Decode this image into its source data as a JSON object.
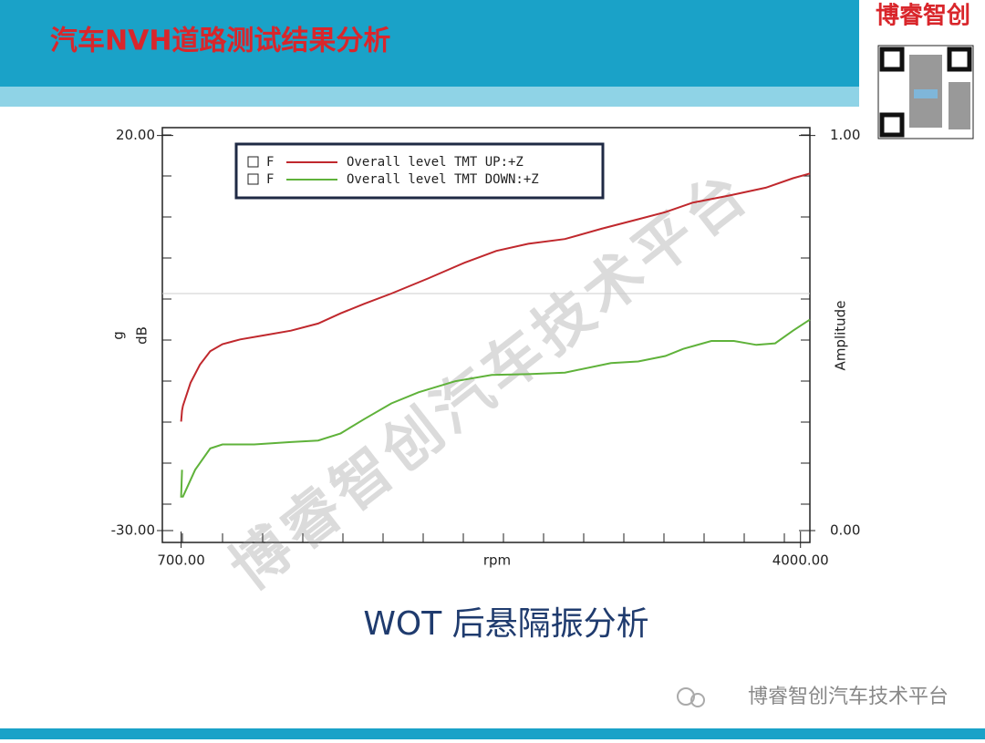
{
  "header": {
    "title": "汽车NVH道路测试结果分析"
  },
  "logo": {
    "text": "博睿智创"
  },
  "chart_data": {
    "type": "line",
    "xlabel": "rpm",
    "ylabel": "dB",
    "ylabel_unit": "g",
    "y2label": "Amplitude",
    "legend_prefix": "F",
    "xlim": [
      600,
      4050
    ],
    "xticks": [
      {
        "value": 700,
        "label": "700.00"
      },
      {
        "value": 4000,
        "label": "4000.00"
      }
    ],
    "ylim": [
      -31.5,
      21
    ],
    "yticks": [
      {
        "value": -30,
        "label": "-30.00"
      },
      {
        "value": 20,
        "label": "20.00"
      }
    ],
    "y2lim": [
      -0.03,
      1.02
    ],
    "y2ticks": [
      {
        "value": 0,
        "label": "0.00"
      },
      {
        "value": 1,
        "label": "1.00"
      }
    ],
    "hlines": [
      0
    ],
    "series": [
      {
        "name": "Overall level TMT UP:+Z",
        "color": "#c0282d",
        "x": [
          700,
          705,
          710,
          750,
          800,
          855,
          920,
          1015,
          1140,
          1285,
          1430,
          1550,
          1675,
          1820,
          2015,
          2210,
          2380,
          2550,
          2745,
          2940,
          3135,
          3280,
          3425,
          3620,
          3815,
          3960,
          4050
        ],
        "values": [
          -16.2,
          -14.8,
          -14.2,
          -11.3,
          -9.0,
          -7.3,
          -6.4,
          -5.8,
          -5.3,
          -4.7,
          -3.8,
          -2.5,
          -1.3,
          0,
          1.9,
          3.9,
          5.4,
          6.3,
          6.9,
          8.2,
          9.4,
          10.3,
          11.5,
          12.4,
          13.4,
          14.6,
          15.2
        ]
      },
      {
        "name": "Overall level TMT DOWN:+Z",
        "color": "#5fb23a",
        "x": [
          705,
          700,
          710,
          775,
          855,
          920,
          1090,
          1285,
          1430,
          1550,
          1675,
          1820,
          1965,
          2160,
          2355,
          2550,
          2745,
          2990,
          3135,
          3280,
          3375,
          3525,
          3645,
          3765,
          3865,
          3960,
          4050
        ],
        "values": [
          -22.3,
          -25.7,
          -25.7,
          -22.3,
          -19.6,
          -19.1,
          -19.1,
          -18.8,
          -18.6,
          -17.7,
          -15.9,
          -13.9,
          -12.5,
          -11.1,
          -10.3,
          -10.2,
          -10.0,
          -8.8,
          -8.6,
          -7.9,
          -7.0,
          -6.0,
          -6.0,
          -6.5,
          -6.3,
          -4.7,
          -3.3
        ]
      }
    ]
  },
  "caption": "WOT 后悬隔振分析",
  "watermark": "博睿智创汽车技术平台",
  "footer": {
    "text": "博睿智创汽车技术平台"
  }
}
